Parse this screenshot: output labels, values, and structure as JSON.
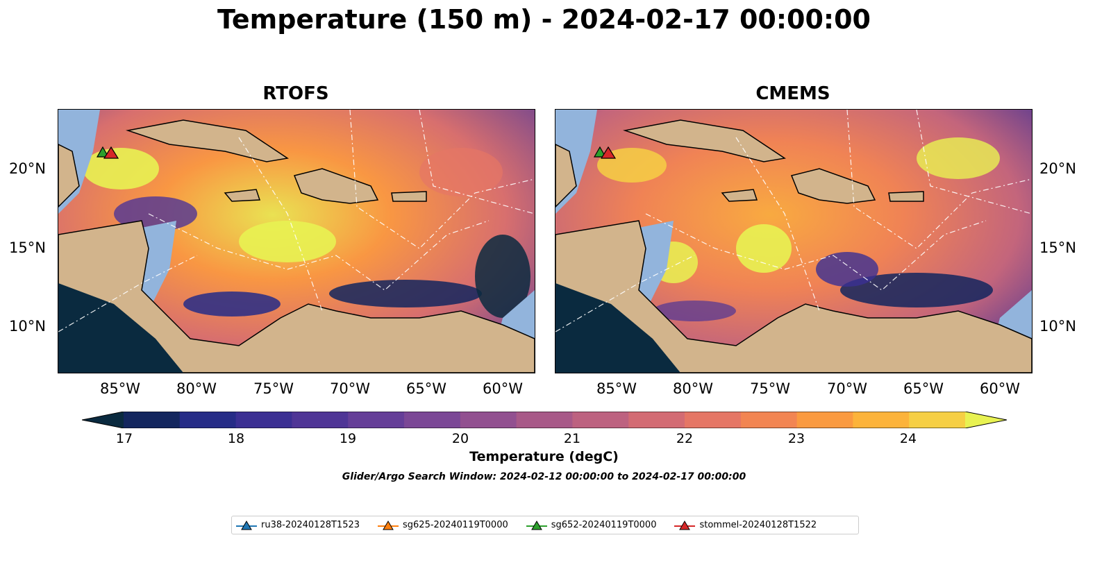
{
  "figure": {
    "title": "Temperature (150 m) - 2024-02-17 00:00:00",
    "panels": [
      {
        "title": "RTOFS"
      },
      {
        "title": "CMEMS"
      }
    ],
    "lat_ticks": [
      "20°N",
      "15°N",
      "10°N"
    ],
    "lon_ticks": [
      "85°W",
      "80°W",
      "75°W",
      "70°W",
      "65°W",
      "60°W"
    ],
    "colorbar": {
      "label": "Temperature (degC)",
      "min": 17,
      "max": 24.5,
      "step": 0.5,
      "ticks": [
        "17",
        "18",
        "19",
        "20",
        "21",
        "22",
        "23",
        "24"
      ],
      "colors": [
        "#0a2a3f",
        "#13265e",
        "#262c87",
        "#3b2f93",
        "#4f3596",
        "#653e98",
        "#7b4796",
        "#925090",
        "#a85988",
        "#bd6280",
        "#d36b73",
        "#e57665",
        "#f28552",
        "#fa9a40",
        "#fcb33a",
        "#f6cf44",
        "#e8f252"
      ]
    },
    "search_window": "Glider/Argo Search Window: 2024-02-12 00:00:00 to 2024-02-17 00:00:00",
    "legend": [
      {
        "label": "ru38-20240128T1523",
        "color": "#1f77b4"
      },
      {
        "label": "sg625-20240119T0000",
        "color": "#ff7f0e"
      },
      {
        "label": "sg652-20240119T0000",
        "color": "#2ca02c"
      },
      {
        "label": "stommel-20240128T1522",
        "color": "#d62728"
      }
    ],
    "colors": {
      "land": "#d2b48c",
      "shelf": "#92b4dc",
      "deep_pacific": "#0c2a3a",
      "eez_lines": "#ffffff"
    }
  }
}
